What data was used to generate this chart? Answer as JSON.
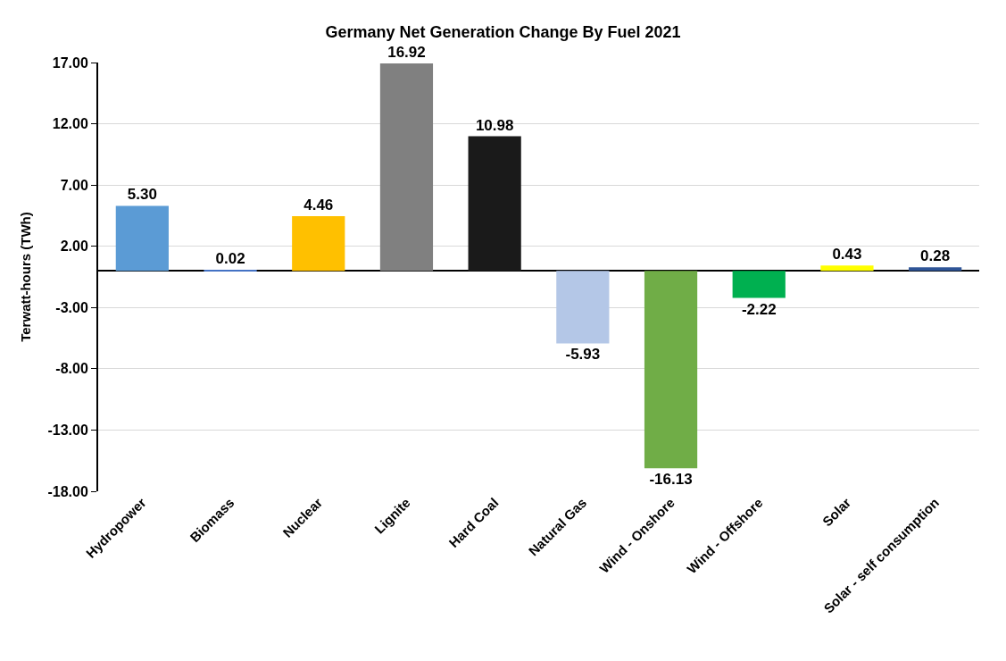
{
  "chart_data": {
    "type": "bar",
    "title": "Germany Net Generation Change By Fuel 2021",
    "ylabel": "Terwatt-hours (TWh)",
    "categories": [
      "Hydropower",
      "Biomass",
      "Nuclear",
      "Lignite",
      "Hard Coal",
      "Natural Gas",
      "Wind - Onshore",
      "Wind - Offshore",
      "Solar",
      "Solar - self consumption"
    ],
    "values": [
      5.3,
      0.02,
      4.46,
      16.92,
      10.98,
      -5.93,
      -16.13,
      -2.22,
      0.43,
      0.28
    ],
    "colors": [
      "#5b9bd5",
      "#4472c4",
      "#ffc000",
      "#808080",
      "#1a1a1a",
      "#b4c7e7",
      "#70ad47",
      "#00b050",
      "#ffff00",
      "#2f5597"
    ],
    "value_labels": [
      "5.30",
      "0.02",
      "4.46",
      "16.92",
      "10.98",
      "-5.93",
      "-16.13",
      "-2.22",
      "0.43",
      "0.28"
    ],
    "ylim": [
      -18,
      17
    ],
    "yticks": [
      {
        "value": 17,
        "label": "17.00"
      },
      {
        "value": 12,
        "label": "12.00"
      },
      {
        "value": 7,
        "label": "7.00"
      },
      {
        "value": 2,
        "label": "2.00"
      },
      {
        "value": -3,
        "label": "-3.00"
      },
      {
        "value": -8,
        "label": "-8.00"
      },
      {
        "value": -13,
        "label": "-13.00"
      },
      {
        "value": -18,
        "label": "-18.00"
      }
    ],
    "grid": "y"
  }
}
